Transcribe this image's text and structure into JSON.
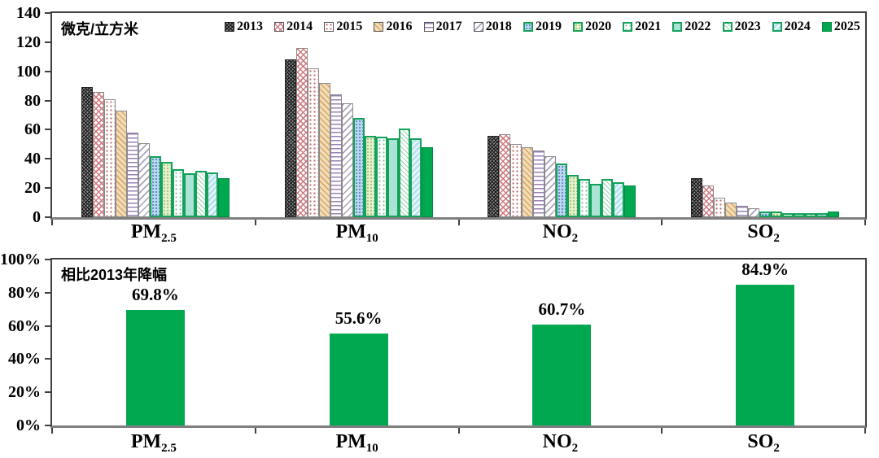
{
  "chart_data": [
    {
      "type": "bar",
      "unit_label": "微克/立方米",
      "ylim": [
        0,
        140
      ],
      "yticks": [
        0,
        20,
        40,
        60,
        80,
        100,
        120,
        140
      ],
      "grid": false,
      "legend_position": "top-inside",
      "categories": [
        {
          "label": "PM",
          "sub": "2.5"
        },
        {
          "label": "PM",
          "sub": "10"
        },
        {
          "label": "NO",
          "sub": "2"
        },
        {
          "label": "SO",
          "sub": "2"
        }
      ],
      "series": [
        {
          "name": "2013",
          "pattern": "dark-gray-crosshatch",
          "values": [
            89.5,
            108,
            56,
            26.5
          ]
        },
        {
          "name": "2014",
          "pattern": "pink-crosshatch",
          "values": [
            86,
            116,
            57,
            22
          ]
        },
        {
          "name": "2015",
          "pattern": "white-red-dots",
          "values": [
            80.6,
            102,
            50,
            13.5
          ]
        },
        {
          "name": "2016",
          "pattern": "tan-diagonal",
          "values": [
            73,
            92,
            48,
            10
          ]
        },
        {
          "name": "2017",
          "pattern": "purple-horizontal",
          "values": [
            58,
            84,
            46,
            8
          ]
        },
        {
          "name": "2018",
          "pattern": "gray-diagonal",
          "values": [
            51,
            78,
            42,
            6
          ]
        },
        {
          "name": "2019",
          "pattern": "blue-dots",
          "values": [
            42,
            68,
            37,
            4
          ]
        },
        {
          "name": "2020",
          "pattern": "lightgreen-dots",
          "values": [
            38,
            56,
            29,
            4
          ]
        },
        {
          "name": "2021",
          "pattern": "white-green-dots",
          "values": [
            33,
            55,
            26,
            3
          ]
        },
        {
          "name": "2022",
          "pattern": "teal-solid",
          "values": [
            30,
            54,
            23,
            3
          ]
        },
        {
          "name": "2023",
          "pattern": "white-green-hatch",
          "values": [
            32,
            61,
            26,
            3
          ]
        },
        {
          "name": "2024",
          "pattern": "cyan-diagonal",
          "values": [
            30.5,
            54,
            24,
            3
          ]
        },
        {
          "name": "2025",
          "pattern": "solid-green",
          "values": [
            27,
            48,
            22,
            4
          ]
        }
      ]
    },
    {
      "type": "bar",
      "title": "相比2013年降幅",
      "ylim": [
        0,
        100
      ],
      "ytick_labels": [
        "0%",
        "20%",
        "40%",
        "60%",
        "80%",
        "100%"
      ],
      "yticks": [
        0,
        20,
        40,
        60,
        80,
        100
      ],
      "grid": false,
      "bar_color": "#00a950",
      "categories": [
        {
          "label": "PM",
          "sub": "2.5"
        },
        {
          "label": "PM",
          "sub": "10"
        },
        {
          "label": "NO",
          "sub": "2"
        },
        {
          "label": "SO",
          "sub": "2"
        }
      ],
      "values": [
        69.8,
        55.6,
        60.7,
        84.9
      ],
      "value_labels": [
        "69.8%",
        "55.6%",
        "60.7%",
        "84.9%"
      ]
    }
  ]
}
